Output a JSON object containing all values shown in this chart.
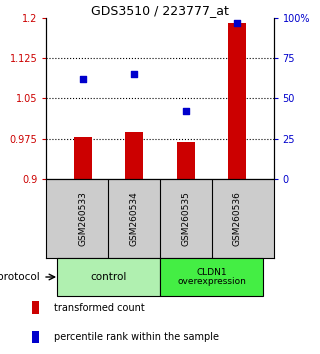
{
  "title": "GDS3510 / 223777_at",
  "samples": [
    "GSM260533",
    "GSM260534",
    "GSM260535",
    "GSM260536"
  ],
  "red_values": [
    0.978,
    0.988,
    0.968,
    1.19
  ],
  "blue_values": [
    62,
    65,
    42,
    97
  ],
  "ylim_left": [
    0.9,
    1.2
  ],
  "ylim_right": [
    0,
    100
  ],
  "yticks_left": [
    0.9,
    0.975,
    1.05,
    1.125,
    1.2
  ],
  "yticks_right": [
    0,
    25,
    50,
    75,
    100
  ],
  "ytick_labels_left": [
    "0.9",
    "0.975",
    "1.05",
    "1.125",
    "1.2"
  ],
  "ytick_labels_right": [
    "0",
    "25",
    "50",
    "75",
    "100%"
  ],
  "bar_color": "#cc0000",
  "dot_color": "#0000cc",
  "control_color": "#b0f0b0",
  "cldn1_color": "#44ee44",
  "sample_bg_color": "#cccccc",
  "background_color": "#ffffff",
  "bar_bottom": 0.9,
  "bar_width": 0.35,
  "legend_items": [
    {
      "color": "#cc0000",
      "label": "transformed count"
    },
    {
      "color": "#0000cc",
      "label": "percentile rank within the sample"
    }
  ]
}
